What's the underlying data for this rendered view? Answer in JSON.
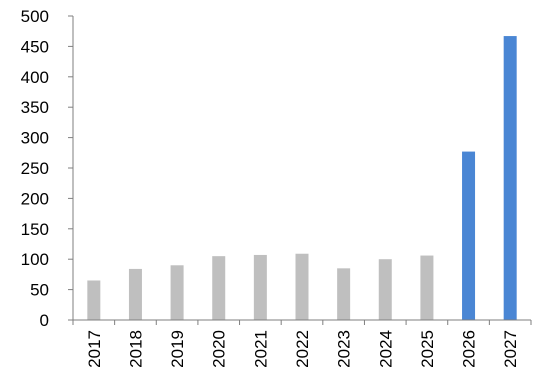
{
  "chart_data": {
    "type": "bar",
    "categories": [
      "2017",
      "2018",
      "2019",
      "2020",
      "2021",
      "2022",
      "2023",
      "2024",
      "2025",
      "2026",
      "2027"
    ],
    "values": [
      65,
      84,
      90,
      105,
      107,
      109,
      85,
      100,
      106,
      277,
      467
    ],
    "bar_colors": [
      "#bfbfbf",
      "#bfbfbf",
      "#bfbfbf",
      "#bfbfbf",
      "#bfbfbf",
      "#bfbfbf",
      "#bfbfbf",
      "#bfbfbf",
      "#bfbfbf",
      "#4a86d4",
      "#4a86d4"
    ],
    "y_ticks": [
      "0",
      "50",
      "100",
      "150",
      "200",
      "250",
      "300",
      "350",
      "400",
      "450",
      "500"
    ],
    "ylim": [
      0,
      500
    ],
    "grid": false,
    "legend": "none",
    "title": "",
    "xlabel": "",
    "ylabel": "",
    "axis_color": "#7f7f7f"
  }
}
